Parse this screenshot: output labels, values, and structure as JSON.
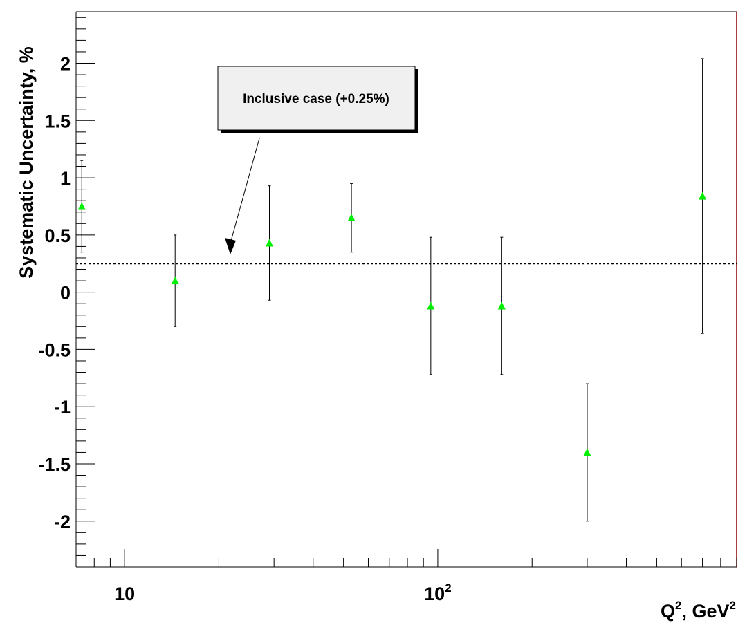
{
  "chart_data": {
    "type": "scatter",
    "title": "",
    "xlabel_base": "Q",
    "xlabel_sup1": "2",
    "xlabel_mid": ", GeV",
    "xlabel_sup2": "2",
    "ylabel": "Systematic Uncertainty, %",
    "x_scale": "log",
    "xlim": [
      7.0,
      900
    ],
    "ylim": [
      -2.4,
      2.45
    ],
    "y_ticks": [
      -2,
      -1.5,
      -1,
      -0.5,
      0,
      0.5,
      1,
      1.5,
      2
    ],
    "y_tick_labels": [
      "-2",
      "-1.5",
      "-1",
      "-0.5",
      "0",
      "0.5",
      "1",
      "1.5",
      "2"
    ],
    "x_tick_labels": [
      {
        "value": 10,
        "base": "10",
        "exp": ""
      },
      {
        "value": 100,
        "base": "10",
        "exp": "2"
      }
    ],
    "marker_color": "#00ee00",
    "reference_line": {
      "y": 0.25,
      "style": "dashed",
      "color": "#000000"
    },
    "annotation": {
      "text": "Inclusive case (+0.25%)",
      "points_to": {
        "x": 20,
        "y": 0.35
      }
    },
    "points": [
      {
        "x": 7.3,
        "y": 0.75,
        "err_low": 0.4,
        "err_high": 0.4
      },
      {
        "x": 14.5,
        "y": 0.1,
        "err_low": 0.4,
        "err_high": 0.4
      },
      {
        "x": 29,
        "y": 0.43,
        "err_low": 0.5,
        "err_high": 0.5
      },
      {
        "x": 53,
        "y": 0.65,
        "err_low": 0.3,
        "err_high": 0.3
      },
      {
        "x": 95,
        "y": -0.12,
        "err_low": 0.6,
        "err_high": 0.6
      },
      {
        "x": 160,
        "y": -0.12,
        "err_low": 0.6,
        "err_high": 0.6
      },
      {
        "x": 300,
        "y": -1.4,
        "err_low": 0.6,
        "err_high": 0.6
      },
      {
        "x": 700,
        "y": 0.84,
        "err_low": 1.2,
        "err_high": 1.2
      }
    ]
  }
}
